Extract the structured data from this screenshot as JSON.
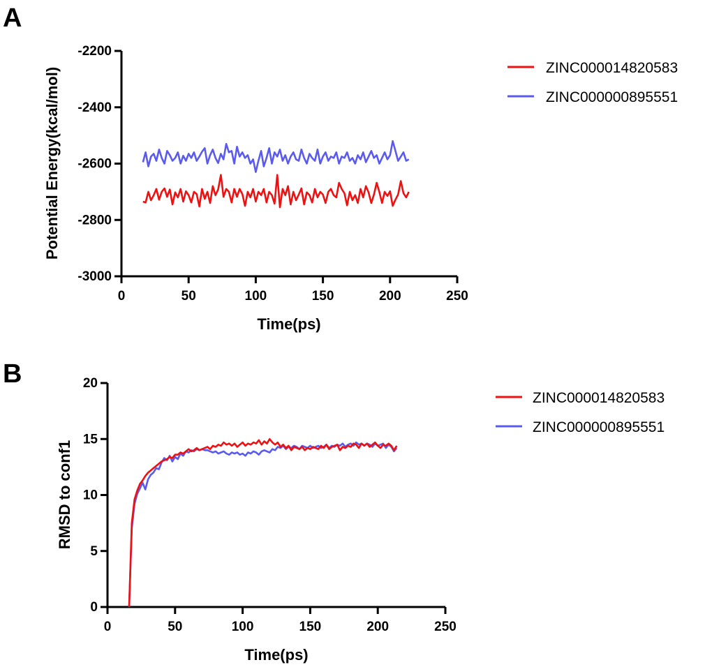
{
  "chart_data": [
    {
      "panel": "A",
      "type": "line",
      "title": "",
      "xlabel": "Time(ps)",
      "ylabel": "Potential Energy(kcal/mol)",
      "xlim": [
        0,
        250
      ],
      "ylim": [
        -3000,
        -2200
      ],
      "xticks": [
        0,
        50,
        100,
        150,
        200,
        250
      ],
      "yticks": [
        -3000,
        -2800,
        -2600,
        -2400,
        -2200
      ],
      "legend_position": "right",
      "grid": false,
      "series": [
        {
          "name": "ZINC000014820583",
          "color": "#ee1111",
          "x": [
            16,
            18,
            20,
            22,
            24,
            26,
            28,
            30,
            32,
            34,
            36,
            38,
            40,
            42,
            44,
            46,
            48,
            50,
            52,
            54,
            56,
            58,
            60,
            62,
            64,
            66,
            68,
            70,
            72,
            74,
            76,
            78,
            80,
            82,
            84,
            86,
            88,
            90,
            92,
            94,
            96,
            98,
            100,
            102,
            104,
            106,
            108,
            110,
            112,
            114,
            116,
            118,
            120,
            122,
            124,
            126,
            128,
            130,
            132,
            134,
            136,
            138,
            140,
            142,
            144,
            146,
            148,
            150,
            152,
            154,
            156,
            158,
            160,
            162,
            164,
            166,
            168,
            170,
            172,
            174,
            176,
            178,
            180,
            182,
            184,
            186,
            188,
            190,
            192,
            194,
            196,
            198,
            200,
            202,
            204,
            206,
            208,
            210,
            212,
            214
          ],
          "y": [
            -2735,
            -2738,
            -2700,
            -2730,
            -2712,
            -2690,
            -2728,
            -2700,
            -2688,
            -2718,
            -2692,
            -2745,
            -2702,
            -2720,
            -2690,
            -2735,
            -2698,
            -2712,
            -2738,
            -2700,
            -2708,
            -2752,
            -2690,
            -2725,
            -2700,
            -2740,
            -2680,
            -2712,
            -2692,
            -2640,
            -2718,
            -2690,
            -2700,
            -2738,
            -2690,
            -2718,
            -2690,
            -2708,
            -2750,
            -2700,
            -2720,
            -2690,
            -2735,
            -2700,
            -2712,
            -2690,
            -2738,
            -2700,
            -2712,
            -2742,
            -2640,
            -2755,
            -2690,
            -2712,
            -2680,
            -2745,
            -2700,
            -2730,
            -2710,
            -2688,
            -2745,
            -2702,
            -2712,
            -2738,
            -2690,
            -2720,
            -2700,
            -2710,
            -2740,
            -2700,
            -2690,
            -2712,
            -2720,
            -2668,
            -2690,
            -2705,
            -2748,
            -2700,
            -2730,
            -2712,
            -2740,
            -2690,
            -2720,
            -2680,
            -2702,
            -2740,
            -2710,
            -2668,
            -2700,
            -2740,
            -2700,
            -2715,
            -2698,
            -2750,
            -2728,
            -2710,
            -2662,
            -2705,
            -2720,
            -2700
          ]
        },
        {
          "name": "ZINC000000895551",
          "color": "#5a5aef",
          "x": [
            16,
            18,
            20,
            22,
            24,
            26,
            28,
            30,
            32,
            34,
            36,
            38,
            40,
            42,
            44,
            46,
            48,
            50,
            52,
            54,
            56,
            58,
            60,
            62,
            64,
            66,
            68,
            70,
            72,
            74,
            76,
            78,
            80,
            82,
            84,
            86,
            88,
            90,
            92,
            94,
            96,
            98,
            100,
            102,
            104,
            106,
            108,
            110,
            112,
            114,
            116,
            118,
            120,
            122,
            124,
            126,
            128,
            130,
            132,
            134,
            136,
            138,
            140,
            142,
            144,
            146,
            148,
            150,
            152,
            154,
            156,
            158,
            160,
            162,
            164,
            166,
            168,
            170,
            172,
            174,
            176,
            178,
            180,
            182,
            184,
            186,
            188,
            190,
            192,
            194,
            196,
            198,
            200,
            202,
            204,
            206,
            208,
            210,
            212,
            214
          ],
          "y": [
            -2595,
            -2560,
            -2610,
            -2575,
            -2565,
            -2590,
            -2550,
            -2580,
            -2600,
            -2555,
            -2570,
            -2590,
            -2580,
            -2560,
            -2600,
            -2572,
            -2590,
            -2565,
            -2580,
            -2560,
            -2590,
            -2575,
            -2558,
            -2545,
            -2600,
            -2570,
            -2550,
            -2580,
            -2598,
            -2565,
            -2585,
            -2530,
            -2560,
            -2555,
            -2600,
            -2540,
            -2575,
            -2560,
            -2580,
            -2570,
            -2600,
            -2585,
            -2630,
            -2590,
            -2555,
            -2610,
            -2580,
            -2545,
            -2600,
            -2560,
            -2575,
            -2550,
            -2590,
            -2570,
            -2600,
            -2575,
            -2560,
            -2585,
            -2590,
            -2550,
            -2580,
            -2600,
            -2565,
            -2580,
            -2590,
            -2550,
            -2600,
            -2575,
            -2560,
            -2590,
            -2575,
            -2580,
            -2560,
            -2600,
            -2575,
            -2580,
            -2560,
            -2590,
            -2580,
            -2600,
            -2570,
            -2585,
            -2560,
            -2595,
            -2575,
            -2555,
            -2580,
            -2570,
            -2600,
            -2580,
            -2560,
            -2585,
            -2570,
            -2520,
            -2555,
            -2590,
            -2575,
            -2560,
            -2590,
            -2585
          ]
        }
      ]
    },
    {
      "panel": "B",
      "type": "line",
      "title": "",
      "xlabel": "Time(ps)",
      "ylabel": "RMSD to conf1",
      "xlim": [
        0,
        250
      ],
      "ylim": [
        0,
        20
      ],
      "xticks": [
        0,
        50,
        100,
        150,
        200,
        250
      ],
      "yticks": [
        0,
        5,
        10,
        15,
        20
      ],
      "legend_position": "right",
      "grid": false,
      "series": [
        {
          "name": "ZINC000014820583",
          "color": "#ee1111",
          "x": [
            16,
            18,
            20,
            22,
            24,
            26,
            28,
            30,
            32,
            34,
            36,
            38,
            40,
            42,
            44,
            46,
            48,
            50,
            52,
            54,
            56,
            58,
            60,
            62,
            64,
            66,
            68,
            70,
            72,
            74,
            76,
            78,
            80,
            82,
            84,
            86,
            88,
            90,
            92,
            94,
            96,
            98,
            100,
            102,
            104,
            106,
            108,
            110,
            112,
            114,
            116,
            118,
            120,
            122,
            124,
            126,
            128,
            130,
            132,
            134,
            136,
            138,
            140,
            142,
            144,
            146,
            148,
            150,
            152,
            154,
            156,
            158,
            160,
            162,
            164,
            166,
            168,
            170,
            172,
            174,
            176,
            178,
            180,
            182,
            184,
            186,
            188,
            190,
            192,
            194,
            196,
            198,
            200,
            202,
            204,
            206,
            208,
            210,
            212,
            214
          ],
          "y": [
            0,
            7.5,
            9.6,
            10.4,
            11.0,
            11.3,
            11.7,
            12.0,
            12.2,
            12.4,
            12.6,
            12.8,
            13.0,
            13.1,
            13.2,
            13.4,
            13.3,
            13.6,
            13.6,
            13.8,
            13.7,
            13.9,
            14.1,
            13.9,
            14.0,
            14.2,
            14.0,
            14.1,
            14.2,
            14.3,
            14.1,
            14.4,
            14.3,
            14.5,
            14.4,
            14.7,
            14.5,
            14.6,
            14.4,
            14.6,
            14.3,
            14.5,
            14.7,
            14.4,
            14.6,
            14.5,
            14.7,
            14.6,
            14.9,
            14.5,
            14.8,
            14.6,
            15.0,
            14.7,
            14.5,
            14.7,
            14.3,
            14.5,
            14.2,
            14.4,
            14.0,
            14.3,
            14.2,
            14.1,
            14.3,
            14.0,
            14.2,
            14.1,
            14.3,
            14.2,
            14.1,
            14.4,
            14.2,
            14.5,
            14.1,
            14.3,
            14.4,
            14.5,
            14.0,
            14.3,
            14.2,
            14.4,
            14.3,
            14.6,
            14.5,
            14.2,
            14.6,
            14.4,
            14.6,
            14.3,
            14.5,
            14.7,
            14.4,
            14.2,
            14.5,
            14.4,
            14.6,
            14.4,
            14.0,
            14.4
          ]
        },
        {
          "name": "ZINC000000895551",
          "color": "#5a5aef",
          "x": [
            16,
            18,
            20,
            22,
            24,
            26,
            28,
            30,
            32,
            34,
            36,
            38,
            40,
            42,
            44,
            46,
            48,
            50,
            52,
            54,
            56,
            58,
            60,
            62,
            64,
            66,
            68,
            70,
            72,
            74,
            76,
            78,
            80,
            82,
            84,
            86,
            88,
            90,
            92,
            94,
            96,
            98,
            100,
            102,
            104,
            106,
            108,
            110,
            112,
            114,
            116,
            118,
            120,
            122,
            124,
            126,
            128,
            130,
            132,
            134,
            136,
            138,
            140,
            142,
            144,
            146,
            148,
            150,
            152,
            154,
            156,
            158,
            160,
            162,
            164,
            166,
            168,
            170,
            172,
            174,
            176,
            178,
            180,
            182,
            184,
            186,
            188,
            190,
            192,
            194,
            196,
            198,
            200,
            202,
            204,
            206,
            208,
            210,
            212,
            214
          ],
          "y": [
            0,
            7.0,
            9.2,
            10.1,
            10.6,
            11.1,
            10.5,
            11.4,
            11.8,
            12.0,
            12.4,
            12.3,
            12.9,
            13.3,
            13.1,
            13.5,
            13.0,
            13.4,
            13.2,
            13.7,
            13.5,
            13.9,
            13.8,
            14.0,
            13.9,
            14.1,
            14.0,
            14.1,
            14.0,
            14.0,
            13.9,
            13.8,
            13.9,
            13.7,
            13.8,
            13.9,
            13.7,
            13.6,
            13.8,
            13.7,
            13.8,
            13.6,
            13.7,
            13.5,
            13.8,
            13.7,
            13.9,
            13.8,
            13.6,
            13.9,
            14.0,
            13.9,
            13.8,
            14.1,
            14.0,
            14.3,
            14.2,
            14.4,
            14.1,
            14.3,
            14.2,
            14.4,
            14.3,
            14.1,
            14.4,
            14.3,
            14.2,
            14.4,
            14.2,
            14.3,
            14.4,
            14.2,
            14.3,
            14.5,
            14.2,
            14.4,
            14.3,
            14.5,
            14.4,
            14.6,
            14.3,
            14.5,
            14.6,
            14.4,
            14.7,
            14.5,
            14.6,
            14.4,
            14.6,
            14.5,
            14.3,
            14.6,
            14.4,
            14.5,
            14.6,
            14.2,
            14.5,
            14.3,
            13.9,
            14.2
          ]
        }
      ]
    }
  ],
  "panels": [
    {
      "label": "A",
      "xlabel": "Time(ps)",
      "ylabel": "Potential Energy(kcal/mol)",
      "xtick_labels": [
        "0",
        "50",
        "100",
        "150",
        "200",
        "250"
      ],
      "ytick_labels": [
        "-3000",
        "-2800",
        "-2600",
        "-2400",
        "-2200"
      ],
      "legend": [
        "ZINC000014820583",
        "ZINC000000895551"
      ]
    },
    {
      "label": "B",
      "xlabel": "Time(ps)",
      "ylabel": "RMSD to conf1",
      "xtick_labels": [
        "0",
        "50",
        "100",
        "150",
        "200",
        "250"
      ],
      "ytick_labels": [
        "0",
        "5",
        "10",
        "15",
        "20"
      ],
      "legend": [
        "ZINC000014820583",
        "ZINC000000895551"
      ]
    }
  ]
}
